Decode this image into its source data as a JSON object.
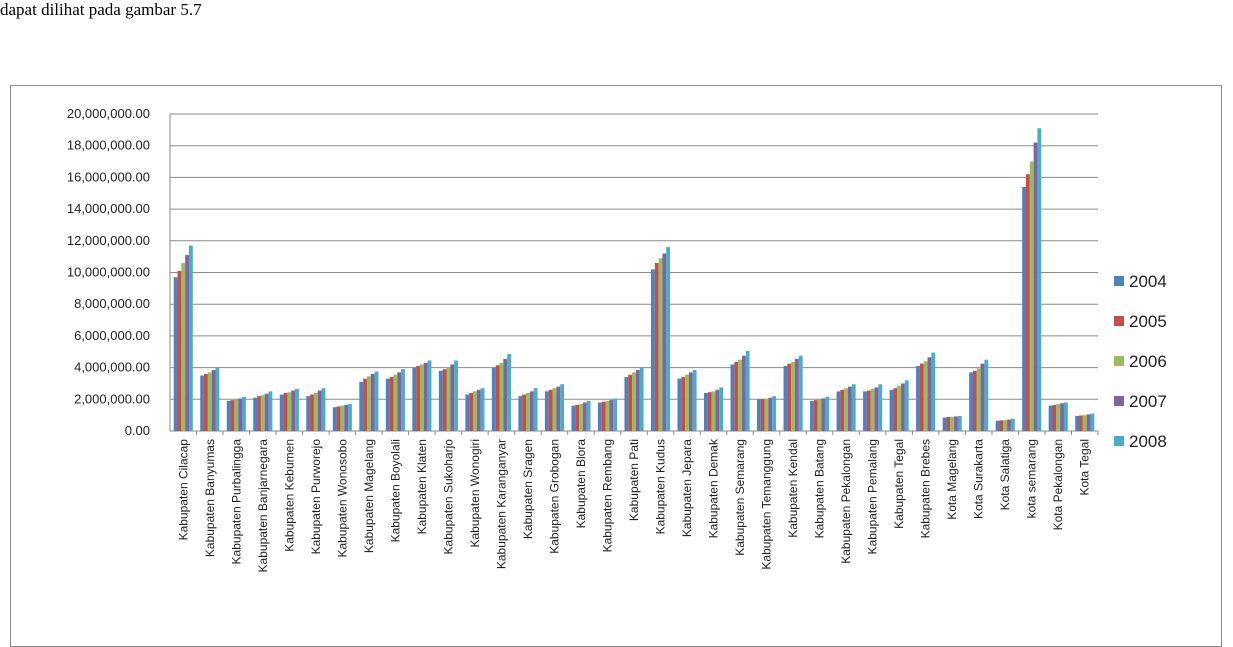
{
  "page": {
    "top_text": "dapat dilihat pada gambar 5.7"
  },
  "chart_data": {
    "type": "bar",
    "ylim": [
      0,
      20000000
    ],
    "yticks": [
      "0.00",
      "2,000,000.00",
      "4,000,000.00",
      "6,000,000.00",
      "8,000,000.00",
      "10,000,000.00",
      "12,000,000.00",
      "14,000,000.00",
      "16,000,000.00",
      "18,000,000.00",
      "20,000,000.00"
    ],
    "grid": true,
    "legend_position": "right",
    "colors": [
      "#4f81bd",
      "#c0504d",
      "#9bbb59",
      "#8064a2",
      "#4bacc6"
    ],
    "categories": [
      "Kabupaten Cilacap",
      "Kabupaten Banyumas",
      "Kabupaten Purbalingga",
      "Kabupaten Banjarnegara",
      "Kabupaten Kebumen",
      "Kabupaten Purworejo",
      "Kabupaten Wonosobo",
      "Kabupaten Magelang",
      "Kabupaten Boyolali",
      "Kabupaten Klaten",
      "Kabupaten Sukoharjo",
      "Kabupaten Wonogiri",
      "Kabupaten Karanganyar",
      "Kabupaten Sragen",
      "Kabupaten Grobogan",
      "Kabupaten Blora",
      "Kabupaten Rembang",
      "Kabupaten Pati",
      "Kabupaten Kudus",
      "Kabupaten Jepara",
      "Kabupaten Demak",
      "Kabupaten Semarang",
      "Kabupaten Temanggung",
      "Kabupaten Kendal",
      "Kabupaten Batang",
      "Kabupaten Pekalongan",
      "Kabupaten Pemalang",
      "Kabupaten Tegal",
      "Kabupaten Brebes",
      "Kota Magelang",
      "Kota Surakarta",
      "Kota Salatiga",
      "kota semarang",
      "Kota Pekalongan",
      "Kota Tegal"
    ],
    "series": [
      {
        "name": "2004",
        "values": [
          9700000,
          3500000,
          1900000,
          2100000,
          2300000,
          2200000,
          1500000,
          3100000,
          3300000,
          4000000,
          3800000,
          2300000,
          4000000,
          2200000,
          2500000,
          1600000,
          1800000,
          3400000,
          10200000,
          3300000,
          2400000,
          4200000,
          2000000,
          4100000,
          1900000,
          2500000,
          2500000,
          2600000,
          4100000,
          850000,
          3700000,
          650000,
          15400000,
          1600000,
          950000
        ]
      },
      {
        "name": "2005",
        "values": [
          10100000,
          3600000,
          1950000,
          2200000,
          2400000,
          2300000,
          1550000,
          3300000,
          3400000,
          4100000,
          3900000,
          2400000,
          4150000,
          2300000,
          2600000,
          1650000,
          1850000,
          3550000,
          10600000,
          3400000,
          2450000,
          4350000,
          2000000,
          4250000,
          1950000,
          2600000,
          2550000,
          2700000,
          4250000,
          880000,
          3800000,
          670000,
          16200000,
          1650000,
          980000
        ]
      },
      {
        "name": "2006",
        "values": [
          10600000,
          3700000,
          2000000,
          2250000,
          2450000,
          2400000,
          1600000,
          3450000,
          3550000,
          4200000,
          4000000,
          2500000,
          4300000,
          2400000,
          2700000,
          1700000,
          1900000,
          3700000,
          10900000,
          3550000,
          2500000,
          4500000,
          2050000,
          4350000,
          2000000,
          2700000,
          2650000,
          2850000,
          4400000,
          900000,
          3950000,
          690000,
          17000000,
          1700000,
          1000000
        ]
      },
      {
        "name": "2007",
        "values": [
          11100000,
          3850000,
          2050000,
          2350000,
          2550000,
          2550000,
          1650000,
          3600000,
          3700000,
          4300000,
          4200000,
          2600000,
          4550000,
          2500000,
          2800000,
          1800000,
          1950000,
          3850000,
          11200000,
          3700000,
          2600000,
          4750000,
          2100000,
          4550000,
          2050000,
          2800000,
          2750000,
          3000000,
          4650000,
          920000,
          4250000,
          720000,
          18200000,
          1750000,
          1050000
        ]
      },
      {
        "name": "2008",
        "values": [
          11700000,
          4000000,
          2150000,
          2500000,
          2650000,
          2700000,
          1700000,
          3750000,
          3900000,
          4450000,
          4450000,
          2700000,
          4850000,
          2700000,
          2950000,
          1900000,
          2050000,
          4000000,
          11600000,
          3850000,
          2750000,
          5050000,
          2200000,
          4750000,
          2150000,
          2950000,
          2950000,
          3200000,
          4950000,
          950000,
          4500000,
          780000,
          19100000,
          1800000,
          1100000
        ]
      }
    ]
  }
}
